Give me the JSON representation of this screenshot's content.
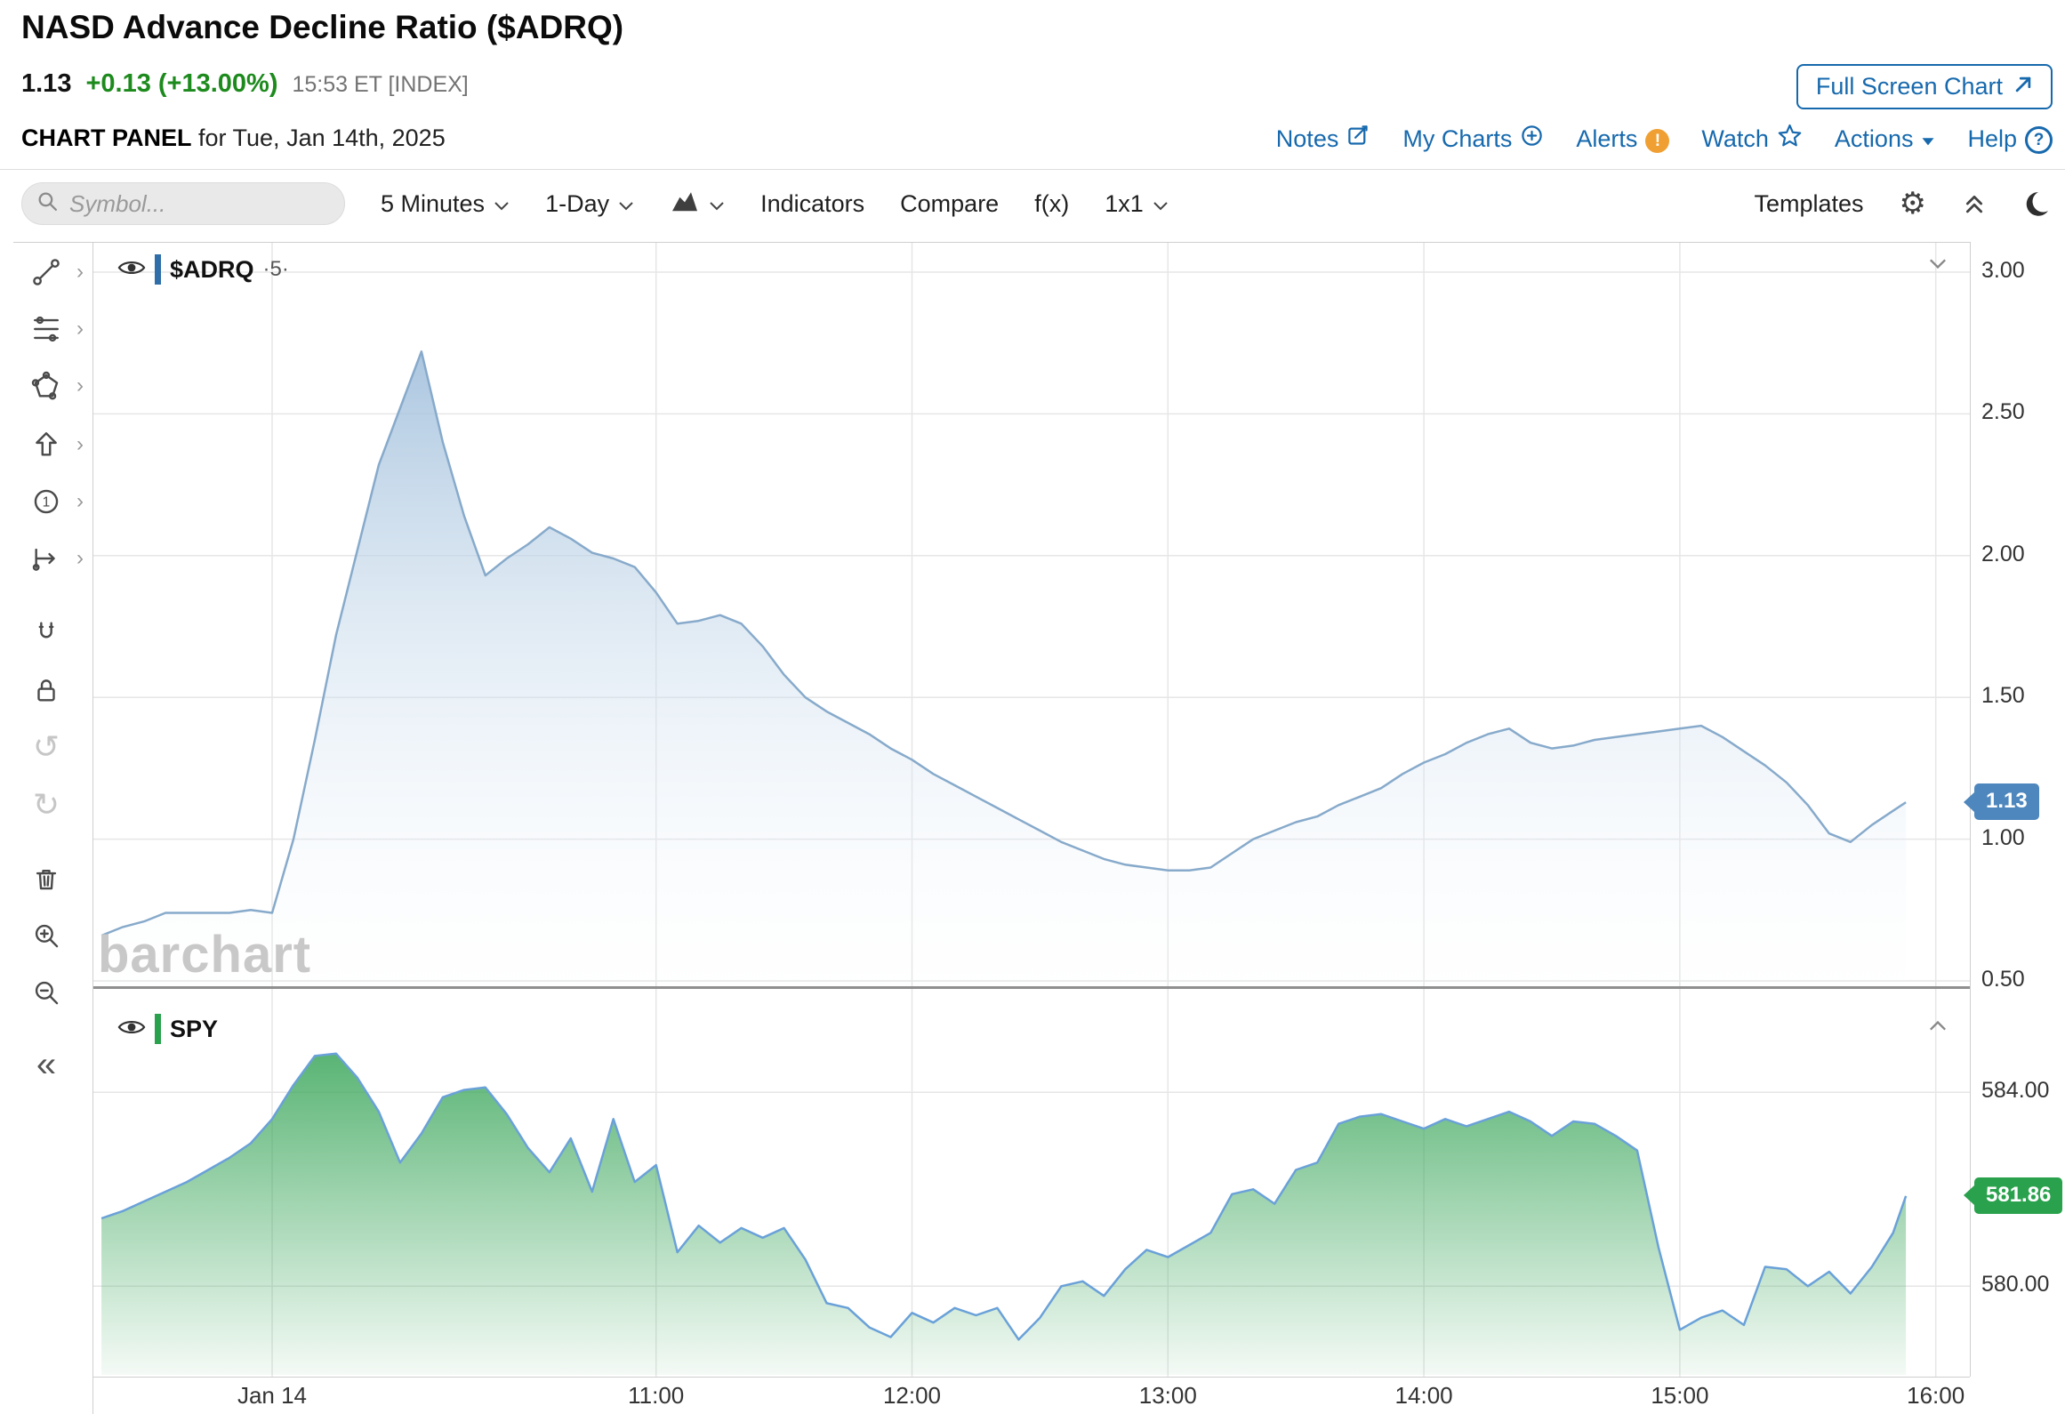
{
  "header": {
    "title": "NASD Advance Decline Ratio ($ADRQ)",
    "last_price": "1.13",
    "change": "+0.13 (+13.00%)",
    "quote_time": "15:53 ET [INDEX]",
    "fullscreen_button": "Full Screen Chart",
    "panel_title": "CHART PANEL",
    "panel_subtitle": "for Tue, Jan 14th, 2025",
    "links": [
      {
        "label": "Notes",
        "icon": "notes-icon"
      },
      {
        "label": "My Charts",
        "icon": "circle-plus-icon"
      },
      {
        "label": "Alerts",
        "icon": "alert-icon"
      },
      {
        "label": "Watch",
        "icon": "star-icon"
      },
      {
        "label": "Actions",
        "icon": "caret-down-icon"
      },
      {
        "label": "Help",
        "icon": "help-icon"
      }
    ],
    "colors": {
      "change_green": "#1d8a1d",
      "link_blue": "#1769ad",
      "alert_orange": "#f0a032"
    }
  },
  "toolbar": {
    "symbol_placeholder": "Symbol...",
    "interval": "5 Minutes",
    "range": "1-Day",
    "chart_type_icon": "area-chart-icon",
    "indicators": "Indicators",
    "compare": "Compare",
    "functions": "f(x)",
    "grid_layout": "1x1",
    "templates": "Templates"
  },
  "drawing_tools": [
    {
      "name": "trend-line",
      "submenu": true
    },
    {
      "name": "fibonacci",
      "submenu": true
    },
    {
      "name": "shapes",
      "submenu": true
    },
    {
      "name": "arrow-marker",
      "submenu": true
    },
    {
      "name": "annotation-number",
      "submenu": true
    },
    {
      "name": "measure",
      "submenu": true
    },
    {
      "name": "magnet",
      "submenu": false
    },
    {
      "name": "lock",
      "submenu": false
    },
    {
      "name": "undo",
      "submenu": false,
      "disabled": true
    },
    {
      "name": "redo",
      "submenu": false,
      "disabled": true
    },
    {
      "name": "delete",
      "submenu": false
    },
    {
      "name": "zoom-in",
      "submenu": false
    },
    {
      "name": "zoom-out",
      "submenu": false
    }
  ],
  "panes": [
    {
      "symbol": "$ADRQ",
      "interval_suffix": "·5·",
      "badge": "1.13",
      "badge_color": "#4e87bd",
      "series_color": "#2f6ea8"
    },
    {
      "symbol": "SPY",
      "interval_suffix": "",
      "badge": "581.86",
      "badge_color": "#2aa14d",
      "series_color": "#2aa14d"
    }
  ],
  "watermark": "barchart",
  "chart_data": [
    {
      "type": "area",
      "name": "$ADRQ",
      "interval": "5 Minutes",
      "ylim": [
        0.45,
        3.05
      ],
      "yticks": [
        3.0,
        2.5,
        2.0,
        1.5,
        1.0,
        0.5
      ],
      "xticks": [
        {
          "label": "Jan 14",
          "time": "09:30"
        },
        {
          "label": "11:00",
          "time": "11:00"
        },
        {
          "label": "12:00",
          "time": "12:00"
        },
        {
          "label": "13:00",
          "time": "13:00"
        },
        {
          "label": "14:00",
          "time": "14:00"
        },
        {
          "label": "15:00",
          "time": "15:00"
        },
        {
          "label": "16:00",
          "time": "16:00"
        }
      ],
      "last_value": 1.13,
      "points": [
        [
          "08:50",
          0.66
        ],
        [
          "08:55",
          0.69
        ],
        [
          "09:00",
          0.71
        ],
        [
          "09:05",
          0.74
        ],
        [
          "09:10",
          0.74
        ],
        [
          "09:15",
          0.74
        ],
        [
          "09:20",
          0.74
        ],
        [
          "09:25",
          0.75
        ],
        [
          "09:30",
          0.74
        ],
        [
          "09:35",
          1.0
        ],
        [
          "09:40",
          1.35
        ],
        [
          "09:45",
          1.72
        ],
        [
          "09:50",
          2.02
        ],
        [
          "09:55",
          2.32
        ],
        [
          "10:00",
          2.52
        ],
        [
          "10:05",
          2.72
        ],
        [
          "10:10",
          2.4
        ],
        [
          "10:15",
          2.14
        ],
        [
          "10:20",
          1.93
        ],
        [
          "10:25",
          1.99
        ],
        [
          "10:30",
          2.04
        ],
        [
          "10:35",
          2.1
        ],
        [
          "10:40",
          2.06
        ],
        [
          "10:45",
          2.01
        ],
        [
          "10:50",
          1.99
        ],
        [
          "10:55",
          1.96
        ],
        [
          "11:00",
          1.87
        ],
        [
          "11:05",
          1.76
        ],
        [
          "11:10",
          1.77
        ],
        [
          "11:15",
          1.79
        ],
        [
          "11:20",
          1.76
        ],
        [
          "11:25",
          1.68
        ],
        [
          "11:30",
          1.58
        ],
        [
          "11:35",
          1.5
        ],
        [
          "11:40",
          1.45
        ],
        [
          "11:45",
          1.41
        ],
        [
          "11:50",
          1.37
        ],
        [
          "11:55",
          1.32
        ],
        [
          "12:00",
          1.28
        ],
        [
          "12:05",
          1.23
        ],
        [
          "12:10",
          1.19
        ],
        [
          "12:15",
          1.15
        ],
        [
          "12:20",
          1.11
        ],
        [
          "12:25",
          1.07
        ],
        [
          "12:30",
          1.03
        ],
        [
          "12:35",
          0.99
        ],
        [
          "12:40",
          0.96
        ],
        [
          "12:45",
          0.93
        ],
        [
          "12:50",
          0.91
        ],
        [
          "12:55",
          0.9
        ],
        [
          "13:00",
          0.89
        ],
        [
          "13:05",
          0.89
        ],
        [
          "13:10",
          0.9
        ],
        [
          "13:15",
          0.95
        ],
        [
          "13:20",
          1.0
        ],
        [
          "13:25",
          1.03
        ],
        [
          "13:30",
          1.06
        ],
        [
          "13:35",
          1.08
        ],
        [
          "13:40",
          1.12
        ],
        [
          "13:45",
          1.15
        ],
        [
          "13:50",
          1.18
        ],
        [
          "13:55",
          1.23
        ],
        [
          "14:00",
          1.27
        ],
        [
          "14:05",
          1.3
        ],
        [
          "14:10",
          1.34
        ],
        [
          "14:15",
          1.37
        ],
        [
          "14:20",
          1.39
        ],
        [
          "14:25",
          1.34
        ],
        [
          "14:30",
          1.32
        ],
        [
          "14:35",
          1.33
        ],
        [
          "14:40",
          1.35
        ],
        [
          "14:45",
          1.36
        ],
        [
          "14:50",
          1.37
        ],
        [
          "14:55",
          1.38
        ],
        [
          "15:00",
          1.39
        ],
        [
          "15:05",
          1.4
        ],
        [
          "15:10",
          1.36
        ],
        [
          "15:15",
          1.31
        ],
        [
          "15:20",
          1.26
        ],
        [
          "15:25",
          1.2
        ],
        [
          "15:30",
          1.12
        ],
        [
          "15:35",
          1.02
        ],
        [
          "15:40",
          0.99
        ],
        [
          "15:45",
          1.05
        ],
        [
          "15:50",
          1.1
        ],
        [
          "15:53",
          1.13
        ]
      ]
    },
    {
      "type": "area",
      "name": "SPY",
      "interval": "5 Minutes",
      "ylim": [
        578.5,
        585.2
      ],
      "yticks": [
        584.0,
        580.0
      ],
      "last_value": 581.86,
      "points": [
        [
          "08:50",
          581.4
        ],
        [
          "08:55",
          581.55
        ],
        [
          "09:00",
          581.75
        ],
        [
          "09:05",
          581.95
        ],
        [
          "09:10",
          582.15
        ],
        [
          "09:15",
          582.4
        ],
        [
          "09:20",
          582.65
        ],
        [
          "09:25",
          582.95
        ],
        [
          "09:30",
          583.45
        ],
        [
          "09:35",
          584.15
        ],
        [
          "09:40",
          584.75
        ],
        [
          "09:45",
          584.8
        ],
        [
          "09:50",
          584.3
        ],
        [
          "09:55",
          583.6
        ],
        [
          "10:00",
          582.55
        ],
        [
          "10:05",
          583.15
        ],
        [
          "10:10",
          583.9
        ],
        [
          "10:15",
          584.05
        ],
        [
          "10:20",
          584.1
        ],
        [
          "10:25",
          583.55
        ],
        [
          "10:30",
          582.85
        ],
        [
          "10:35",
          582.35
        ],
        [
          "10:40",
          583.05
        ],
        [
          "10:45",
          581.95
        ],
        [
          "10:50",
          583.45
        ],
        [
          "10:55",
          582.15
        ],
        [
          "11:00",
          582.5
        ],
        [
          "11:05",
          580.7
        ],
        [
          "11:10",
          581.25
        ],
        [
          "11:15",
          580.9
        ],
        [
          "11:20",
          581.2
        ],
        [
          "11:25",
          581.0
        ],
        [
          "11:30",
          581.2
        ],
        [
          "11:35",
          580.55
        ],
        [
          "11:40",
          579.65
        ],
        [
          "11:45",
          579.55
        ],
        [
          "11:50",
          579.15
        ],
        [
          "11:55",
          578.95
        ],
        [
          "12:00",
          579.45
        ],
        [
          "12:05",
          579.25
        ],
        [
          "12:10",
          579.55
        ],
        [
          "12:15",
          579.4
        ],
        [
          "12:20",
          579.55
        ],
        [
          "12:25",
          578.9
        ],
        [
          "12:30",
          579.35
        ],
        [
          "12:35",
          580.0
        ],
        [
          "12:40",
          580.1
        ],
        [
          "12:45",
          579.8
        ],
        [
          "12:50",
          580.35
        ],
        [
          "12:55",
          580.75
        ],
        [
          "13:00",
          580.6
        ],
        [
          "13:05",
          580.85
        ],
        [
          "13:10",
          581.1
        ],
        [
          "13:15",
          581.9
        ],
        [
          "13:20",
          582.0
        ],
        [
          "13:25",
          581.7
        ],
        [
          "13:30",
          582.4
        ],
        [
          "13:35",
          582.55
        ],
        [
          "13:40",
          583.35
        ],
        [
          "13:45",
          583.5
        ],
        [
          "13:50",
          583.55
        ],
        [
          "13:55",
          583.4
        ],
        [
          "14:00",
          583.25
        ],
        [
          "14:05",
          583.45
        ],
        [
          "14:10",
          583.3
        ],
        [
          "14:15",
          583.45
        ],
        [
          "14:20",
          583.6
        ],
        [
          "14:25",
          583.4
        ],
        [
          "14:30",
          583.1
        ],
        [
          "14:35",
          583.4
        ],
        [
          "14:40",
          583.35
        ],
        [
          "14:45",
          583.1
        ],
        [
          "14:50",
          582.8
        ],
        [
          "14:55",
          580.8
        ],
        [
          "15:00",
          579.1
        ],
        [
          "15:05",
          579.35
        ],
        [
          "15:10",
          579.5
        ],
        [
          "15:15",
          579.2
        ],
        [
          "15:20",
          580.4
        ],
        [
          "15:25",
          580.35
        ],
        [
          "15:30",
          580.0
        ],
        [
          "15:35",
          580.3
        ],
        [
          "15:40",
          579.85
        ],
        [
          "15:45",
          580.4
        ],
        [
          "15:50",
          581.1
        ],
        [
          "15:53",
          581.86
        ]
      ]
    }
  ]
}
